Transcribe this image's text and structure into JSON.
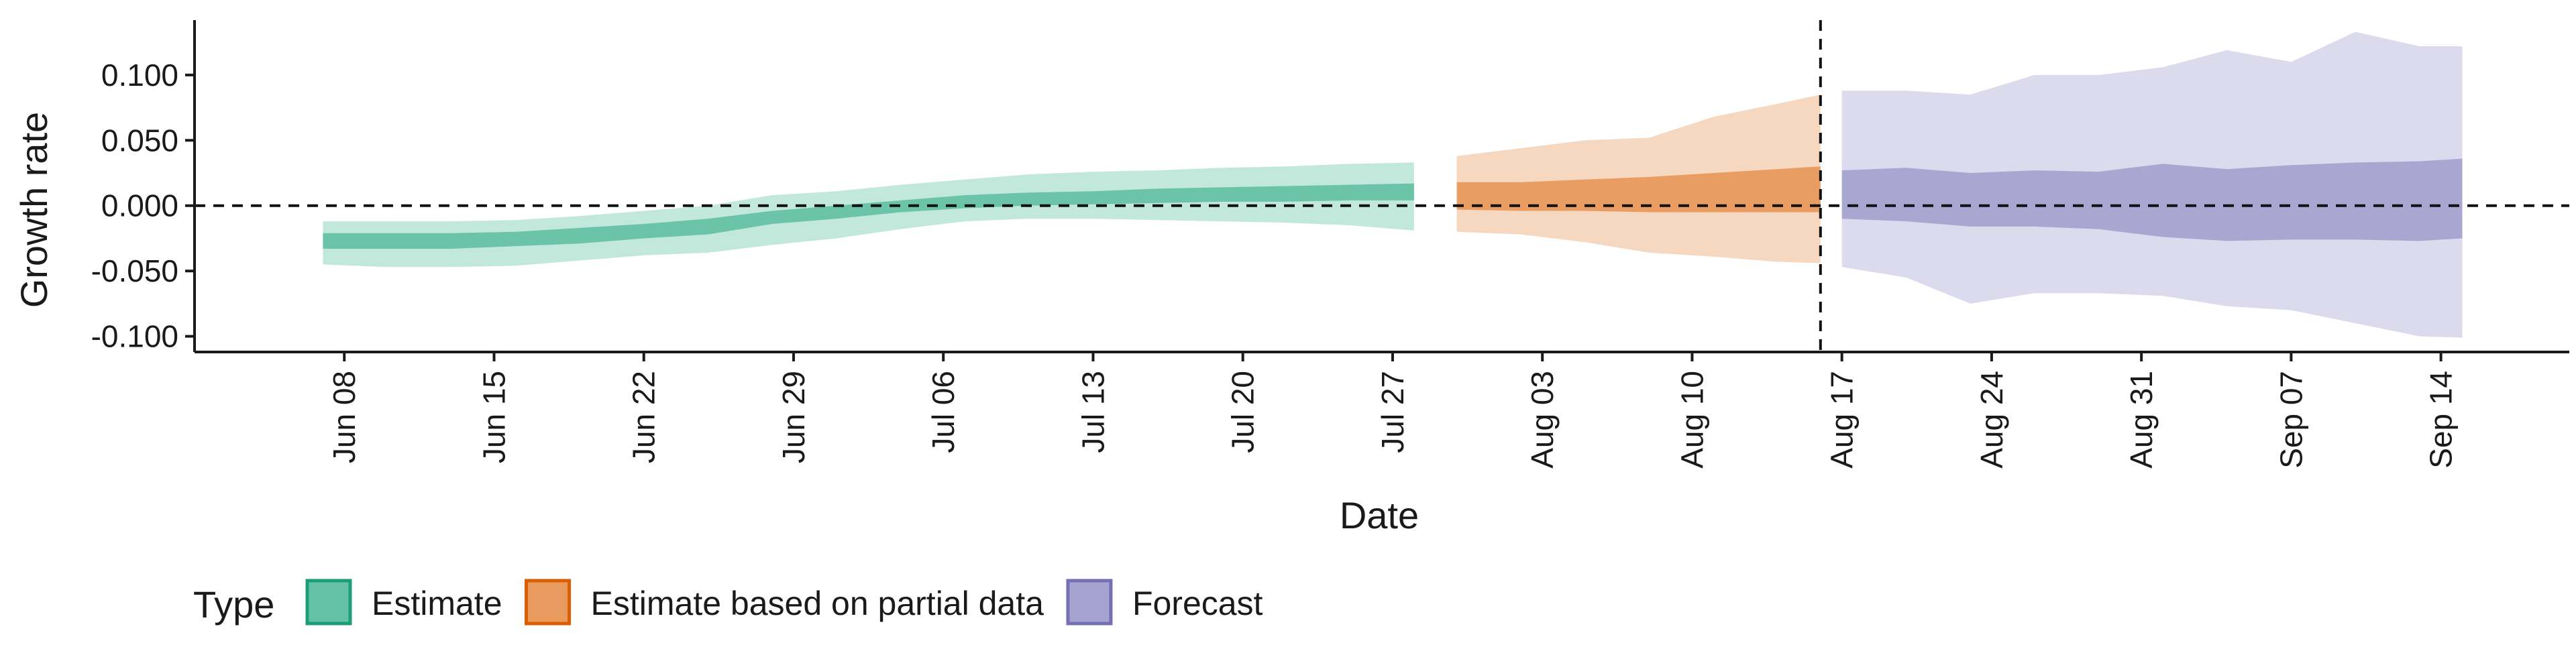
{
  "chart_data": {
    "type": "area",
    "xlabel": "Date",
    "ylabel": "Growth rate",
    "ylim": [
      -0.112,
      0.142
    ],
    "yticks": [
      {
        "value": 0.1,
        "label": "0.100"
      },
      {
        "value": 0.05,
        "label": "0.050"
      },
      {
        "value": 0.0,
        "label": "0.000"
      },
      {
        "value": -0.05,
        "label": "-0.050"
      },
      {
        "value": -0.1,
        "label": "-0.100"
      }
    ],
    "xlim": [
      "2020-06-01",
      "2020-09-20"
    ],
    "xticks": [
      {
        "date": "2020-06-08",
        "label": "Jun 08"
      },
      {
        "date": "2020-06-15",
        "label": "Jun 15"
      },
      {
        "date": "2020-06-22",
        "label": "Jun 22"
      },
      {
        "date": "2020-06-29",
        "label": "Jun 29"
      },
      {
        "date": "2020-07-06",
        "label": "Jul 06"
      },
      {
        "date": "2020-07-13",
        "label": "Jul 13"
      },
      {
        "date": "2020-07-20",
        "label": "Jul 20"
      },
      {
        "date": "2020-07-27",
        "label": "Jul 27"
      },
      {
        "date": "2020-08-03",
        "label": "Aug 03"
      },
      {
        "date": "2020-08-10",
        "label": "Aug 10"
      },
      {
        "date": "2020-08-17",
        "label": "Aug 17"
      },
      {
        "date": "2020-08-24",
        "label": "Aug 24"
      },
      {
        "date": "2020-08-31",
        "label": "Aug 31"
      },
      {
        "date": "2020-09-07",
        "label": "Sep 07"
      },
      {
        "date": "2020-09-14",
        "label": "Sep 14"
      }
    ],
    "reference_lines": {
      "horizontal": 0.0,
      "vertical_date": "2020-08-16"
    },
    "legend": {
      "title": "Type",
      "position": "bottom-left",
      "entries": [
        "Estimate",
        "Estimate based on partial data",
        "Forecast"
      ]
    },
    "series": [
      {
        "name": "Estimate",
        "fill_color": "#66c2a5",
        "border_color": "#1b9e77",
        "points": [
          {
            "x": "2020-06-07",
            "lower90": -0.045,
            "lower50": -0.033,
            "upper50": -0.021,
            "upper90": -0.012
          },
          {
            "x": "2020-06-10",
            "lower90": -0.047,
            "lower50": -0.033,
            "upper50": -0.021,
            "upper90": -0.012
          },
          {
            "x": "2020-06-13",
            "lower90": -0.047,
            "lower50": -0.033,
            "upper50": -0.021,
            "upper90": -0.012
          },
          {
            "x": "2020-06-16",
            "lower90": -0.046,
            "lower50": -0.031,
            "upper50": -0.02,
            "upper90": -0.011
          },
          {
            "x": "2020-06-19",
            "lower90": -0.042,
            "lower50": -0.029,
            "upper50": -0.017,
            "upper90": -0.008
          },
          {
            "x": "2020-06-22",
            "lower90": -0.038,
            "lower50": -0.025,
            "upper50": -0.014,
            "upper90": -0.004
          },
          {
            "x": "2020-06-25",
            "lower90": -0.036,
            "lower50": -0.022,
            "upper50": -0.01,
            "upper90": 0.0
          },
          {
            "x": "2020-06-28",
            "lower90": -0.03,
            "lower50": -0.014,
            "upper50": -0.004,
            "upper90": 0.008
          },
          {
            "x": "2020-07-01",
            "lower90": -0.025,
            "lower50": -0.01,
            "upper50": 0.0,
            "upper90": 0.011
          },
          {
            "x": "2020-07-04",
            "lower90": -0.018,
            "lower50": -0.005,
            "upper50": 0.004,
            "upper90": 0.016
          },
          {
            "x": "2020-07-07",
            "lower90": -0.012,
            "lower50": -0.002,
            "upper50": 0.008,
            "upper90": 0.02
          },
          {
            "x": "2020-07-10",
            "lower90": -0.01,
            "lower50": 0.0,
            "upper50": 0.01,
            "upper90": 0.024
          },
          {
            "x": "2020-07-13",
            "lower90": -0.01,
            "lower50": 0.001,
            "upper50": 0.011,
            "upper90": 0.026
          },
          {
            "x": "2020-07-16",
            "lower90": -0.011,
            "lower50": 0.002,
            "upper50": 0.013,
            "upper90": 0.027
          },
          {
            "x": "2020-07-19",
            "lower90": -0.012,
            "lower50": 0.003,
            "upper50": 0.014,
            "upper90": 0.029
          },
          {
            "x": "2020-07-22",
            "lower90": -0.013,
            "lower50": 0.003,
            "upper50": 0.015,
            "upper90": 0.03
          },
          {
            "x": "2020-07-25",
            "lower90": -0.015,
            "lower50": 0.004,
            "upper50": 0.016,
            "upper90": 0.032
          },
          {
            "x": "2020-07-28",
            "lower90": -0.019,
            "lower50": 0.004,
            "upper50": 0.017,
            "upper90": 0.033
          }
        ]
      },
      {
        "name": "Estimate based on partial data",
        "fill_color": "#e99a5e",
        "border_color": "#d95f02",
        "points": [
          {
            "x": "2020-07-30",
            "lower90": -0.02,
            "lower50": -0.003,
            "upper50": 0.018,
            "upper90": 0.038
          },
          {
            "x": "2020-08-02",
            "lower90": -0.022,
            "lower50": -0.004,
            "upper50": 0.018,
            "upper90": 0.044
          },
          {
            "x": "2020-08-05",
            "lower90": -0.028,
            "lower50": -0.004,
            "upper50": 0.02,
            "upper90": 0.05
          },
          {
            "x": "2020-08-08",
            "lower90": -0.036,
            "lower50": -0.005,
            "upper50": 0.022,
            "upper90": 0.052
          },
          {
            "x": "2020-08-11",
            "lower90": -0.039,
            "lower50": -0.005,
            "upper50": 0.025,
            "upper90": 0.068
          },
          {
            "x": "2020-08-14",
            "lower90": -0.043,
            "lower50": -0.005,
            "upper50": 0.028,
            "upper90": 0.078
          },
          {
            "x": "2020-08-16",
            "lower90": -0.044,
            "lower50": -0.005,
            "upper50": 0.03,
            "upper90": 0.085
          }
        ]
      },
      {
        "name": "Forecast",
        "fill_color": "#a7a3d1",
        "border_color": "#7570b3",
        "points": [
          {
            "x": "2020-08-17",
            "lower90": -0.047,
            "lower50": -0.01,
            "upper50": 0.027,
            "upper90": 0.088
          },
          {
            "x": "2020-08-20",
            "lower90": -0.055,
            "lower50": -0.012,
            "upper50": 0.029,
            "upper90": 0.088
          },
          {
            "x": "2020-08-23",
            "lower90": -0.075,
            "lower50": -0.016,
            "upper50": 0.025,
            "upper90": 0.085
          },
          {
            "x": "2020-08-26",
            "lower90": -0.067,
            "lower50": -0.016,
            "upper50": 0.027,
            "upper90": 0.1
          },
          {
            "x": "2020-08-29",
            "lower90": -0.067,
            "lower50": -0.018,
            "upper50": 0.026,
            "upper90": 0.1
          },
          {
            "x": "2020-09-01",
            "lower90": -0.069,
            "lower50": -0.024,
            "upper50": 0.032,
            "upper90": 0.106
          },
          {
            "x": "2020-09-04",
            "lower90": -0.077,
            "lower50": -0.027,
            "upper50": 0.028,
            "upper90": 0.119
          },
          {
            "x": "2020-09-07",
            "lower90": -0.08,
            "lower50": -0.026,
            "upper50": 0.031,
            "upper90": 0.11
          },
          {
            "x": "2020-09-10",
            "lower90": -0.09,
            "lower50": -0.026,
            "upper50": 0.033,
            "upper90": 0.133
          },
          {
            "x": "2020-09-13",
            "lower90": -0.1,
            "lower50": -0.027,
            "upper50": 0.034,
            "upper90": 0.122
          },
          {
            "x": "2020-09-15",
            "lower90": -0.101,
            "lower50": -0.025,
            "upper50": 0.036,
            "upper90": 0.122
          }
        ]
      }
    ]
  }
}
